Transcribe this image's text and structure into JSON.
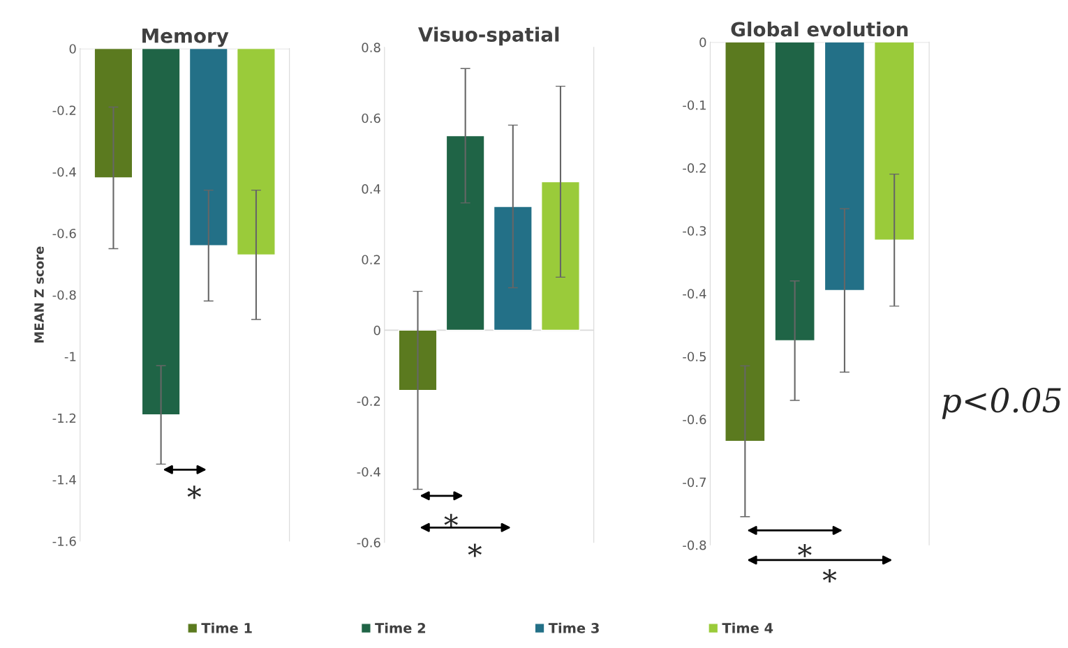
{
  "chart_data": [
    {
      "type": "bar",
      "title": "Memory",
      "ylabel": "MEAN Z score",
      "categories": [
        null
      ],
      "ylim": [
        -1.6,
        0
      ],
      "yticks": [
        0,
        -0.2,
        -0.4,
        -0.6,
        -0.8,
        -1,
        -1.2,
        -1.4,
        -1.6
      ],
      "grid": false,
      "legend": "bottom",
      "tick_labels": "y",
      "ref_lines": [
        {
          "axis": "y",
          "value": 0,
          "color": "#d9d9d9"
        }
      ],
      "series": [
        {
          "name": "Time 1",
          "color": "#5b7a1f",
          "values": [
            -0.42
          ],
          "errors": [
            0.23
          ]
        },
        {
          "name": "Time 2",
          "color": "#1f6446",
          "values": [
            -1.19
          ],
          "errors": [
            0.16
          ]
        },
        {
          "name": "Time 3",
          "color": "#237087",
          "values": [
            -0.64
          ],
          "errors": [
            0.18
          ]
        },
        {
          "name": "Time 4",
          "color": "#9acb3a",
          "values": [
            -0.67
          ],
          "errors": [
            0.21
          ]
        }
      ],
      "annotations": [
        "*"
      ]
    },
    {
      "type": "bar",
      "title": "Visuo-spatial",
      "categories": [
        null
      ],
      "ylim": [
        -0.6,
        0.8
      ],
      "yticks": [
        0.8,
        0.6,
        0.4,
        0.2,
        0,
        -0.2,
        -0.4,
        -0.6
      ],
      "grid": false,
      "tick_labels": "y",
      "ref_lines": [
        {
          "axis": "y",
          "value": 0,
          "color": "#d9d9d9"
        }
      ],
      "series": [
        {
          "color": "#5b7a1f",
          "values": [
            -0.17
          ],
          "errors": [
            0.28
          ]
        },
        {
          "color": "#1f6446",
          "values": [
            0.55
          ],
          "errors": [
            0.19
          ]
        },
        {
          "color": "#237087",
          "values": [
            0.35
          ],
          "errors": [
            0.23
          ]
        },
        {
          "color": "#9acb3a",
          "values": [
            0.42
          ],
          "errors": [
            0.27
          ]
        }
      ],
      "annotations": [
        "*",
        "*"
      ]
    },
    {
      "type": "bar",
      "title": "Global evolution",
      "categories": [
        null
      ],
      "ylim": [
        -0.8,
        0
      ],
      "yticks": [
        0,
        -0.1,
        -0.2,
        -0.3,
        -0.4,
        -0.5,
        -0.6,
        -0.7,
        -0.8
      ],
      "grid": false,
      "tick_labels": "y",
      "ref_lines": [
        {
          "axis": "y",
          "value": 0,
          "color": "#d9d9d9"
        }
      ],
      "series": [
        {
          "color": "#5b7a1f",
          "values": [
            -0.635
          ],
          "errors": [
            0.12
          ]
        },
        {
          "color": "#1f6446",
          "values": [
            -0.475
          ],
          "errors": [
            0.095
          ]
        },
        {
          "color": "#237087",
          "values": [
            -0.395
          ],
          "errors": [
            0.13
          ]
        },
        {
          "color": "#9acb3a",
          "values": [
            -0.315
          ],
          "errors": [
            0.105
          ]
        }
      ],
      "annotations": [
        "*",
        "*",
        "p<0.05"
      ]
    }
  ]
}
